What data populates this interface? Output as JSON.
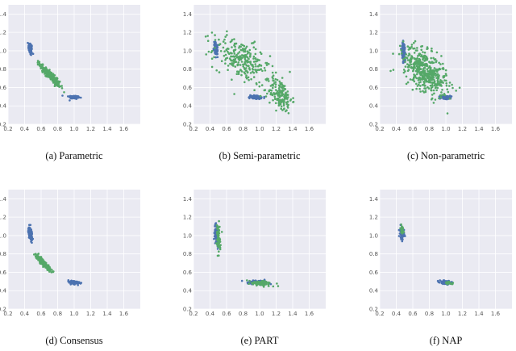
{
  "figure": {
    "colors": {
      "blue": "#4c72b0",
      "green": "#55a868",
      "panel_bg": "#eaeaf2",
      "grid": "#ffffff"
    },
    "axis": {
      "xlim": [
        0.2,
        1.8
      ],
      "ylim": [
        0.2,
        1.5
      ],
      "xticks": [
        "0.2",
        "0.4",
        "0.6",
        "0.8",
        "1.0",
        "1.2",
        "1.4",
        "1.6"
      ],
      "yticks": [
        "0.2",
        "0.4",
        "0.6",
        "0.8",
        "1.0",
        "1.2",
        "1.4"
      ]
    }
  },
  "chart_data": [
    {
      "type": "scatter",
      "caption": "(a) Parametric",
      "series": [
        {
          "name": "blue",
          "clusters": [
            {
              "cx": 0.47,
              "cy": 1.02,
              "sx": 0.012,
              "sy": 0.035,
              "rho": -0.3,
              "n": 90
            },
            {
              "cx": 1.0,
              "cy": 0.495,
              "sx": 0.035,
              "sy": 0.01,
              "rho": -0.3,
              "n": 90
            }
          ]
        },
        {
          "name": "green",
          "clusters": [
            {
              "cx": 0.71,
              "cy": 0.73,
              "sx": 0.06,
              "sy": 0.06,
              "rho": -0.93,
              "n": 260
            }
          ]
        }
      ]
    },
    {
      "type": "scatter",
      "caption": "(b) Semi-parametric",
      "series": [
        {
          "name": "blue",
          "clusters": [
            {
              "cx": 0.47,
              "cy": 1.02,
              "sx": 0.012,
              "sy": 0.035,
              "rho": -0.3,
              "n": 90
            },
            {
              "cx": 0.95,
              "cy": 0.495,
              "sx": 0.035,
              "sy": 0.01,
              "rho": -0.3,
              "n": 90
            }
          ]
        },
        {
          "name": "green",
          "clusters": [
            {
              "cx": 0.78,
              "cy": 0.9,
              "sx": 0.17,
              "sy": 0.12,
              "rho": -0.5,
              "n": 260
            },
            {
              "cx": 1.25,
              "cy": 0.52,
              "sx": 0.07,
              "sy": 0.09,
              "rho": -0.3,
              "n": 160
            }
          ]
        }
      ]
    },
    {
      "type": "scatter",
      "caption": "(c) Non-parametric",
      "series": [
        {
          "name": "blue",
          "clusters": [
            {
              "cx": 0.49,
              "cy": 0.98,
              "sx": 0.012,
              "sy": 0.06,
              "rho": -0.3,
              "n": 110
            },
            {
              "cx": 1.0,
              "cy": 0.495,
              "sx": 0.035,
              "sy": 0.01,
              "rho": -0.3,
              "n": 90
            }
          ]
        },
        {
          "name": "green",
          "clusters": [
            {
              "cx": 0.75,
              "cy": 0.78,
              "sx": 0.13,
              "sy": 0.13,
              "rho": -0.55,
              "n": 480
            }
          ]
        }
      ]
    },
    {
      "type": "scatter",
      "caption": "(d) Consensus",
      "series": [
        {
          "name": "blue",
          "clusters": [
            {
              "cx": 0.47,
              "cy": 1.02,
              "sx": 0.012,
              "sy": 0.035,
              "rho": -0.3,
              "n": 90
            },
            {
              "cx": 1.0,
              "cy": 0.49,
              "sx": 0.035,
              "sy": 0.01,
              "rho": -0.3,
              "n": 90
            }
          ]
        },
        {
          "name": "green",
          "clusters": [
            {
              "cx": 0.62,
              "cy": 0.71,
              "sx": 0.045,
              "sy": 0.045,
              "rho": -0.93,
              "n": 220
            }
          ]
        }
      ]
    },
    {
      "type": "scatter",
      "caption": "(e) PART",
      "series": [
        {
          "name": "blue",
          "clusters": [
            {
              "cx": 0.48,
              "cy": 1.01,
              "sx": 0.012,
              "sy": 0.055,
              "rho": -0.3,
              "n": 90
            },
            {
              "cx": 0.98,
              "cy": 0.49,
              "sx": 0.06,
              "sy": 0.012,
              "rho": -0.3,
              "n": 100
            }
          ]
        },
        {
          "name": "green",
          "clusters": [
            {
              "cx": 0.5,
              "cy": 0.96,
              "sx": 0.012,
              "sy": 0.08,
              "rho": -0.3,
              "n": 70
            },
            {
              "cx": 1.02,
              "cy": 0.48,
              "sx": 0.08,
              "sy": 0.015,
              "rho": -0.3,
              "n": 70
            }
          ]
        }
      ]
    },
    {
      "type": "scatter",
      "caption": "(f) NAP",
      "series": [
        {
          "name": "blue",
          "clusters": [
            {
              "cx": 0.47,
              "cy": 1.02,
              "sx": 0.012,
              "sy": 0.035,
              "rho": -0.3,
              "n": 90
            },
            {
              "cx": 1.0,
              "cy": 0.49,
              "sx": 0.035,
              "sy": 0.01,
              "rho": -0.3,
              "n": 90
            }
          ]
        },
        {
          "name": "green",
          "clusters": [
            {
              "cx": 0.47,
              "cy": 1.07,
              "sx": 0.01,
              "sy": 0.025,
              "rho": -0.3,
              "n": 35
            },
            {
              "cx": 1.03,
              "cy": 0.48,
              "sx": 0.03,
              "sy": 0.008,
              "rho": -0.3,
              "n": 30
            }
          ]
        }
      ]
    }
  ]
}
